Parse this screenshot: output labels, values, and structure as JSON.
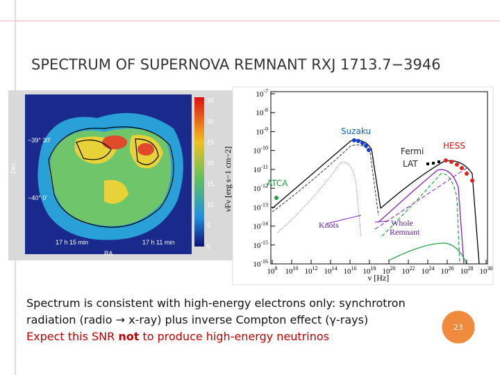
{
  "title": "SPECTRUM OF SUPERNOVA REMNANT RXJ 1713.7−3946",
  "map_image": {
    "colorbar_ticks": [
      35,
      30,
      25,
      20,
      15,
      10,
      5,
      0
    ],
    "dec_labels": [
      "−39° 30'",
      "−40° 0'"
    ],
    "dec_axis": "Dec.",
    "ra_labels": [
      "17 h 15 min",
      "17 h 11 min"
    ],
    "ra_axis": "RA"
  },
  "spectrum_plot": {
    "y_axis_label": "νFν [erg s−1 cm−2]",
    "x_axis_label": "ν [Hz]",
    "tick_base": "10",
    "y_tick_exponents": [
      "-7",
      "-8",
      "-9",
      "-10",
      "-11",
      "-12",
      "-13",
      "-14",
      "-15",
      "-16"
    ],
    "x_tick_exponents": [
      "8",
      "10",
      "12",
      "14",
      "16",
      "18",
      "20",
      "22",
      "24",
      "26",
      "28",
      "30"
    ],
    "annotations": [
      "Suzaku",
      "Fermi",
      "LAT",
      "HESS",
      "ATCA",
      "Knots",
      "Whole",
      "Remnant"
    ]
  },
  "body": {
    "line1": "Spectrum is consistent with high-energy electrons only: synchrotron",
    "line2": "radiation (radio → x-ray) plus inverse Compton effect (γ-rays)",
    "line3_start": "Expect this SNR ",
    "line3_bold": "not",
    "line3_end": " to produce high-energy neutrinos"
  },
  "page_number": "23"
}
